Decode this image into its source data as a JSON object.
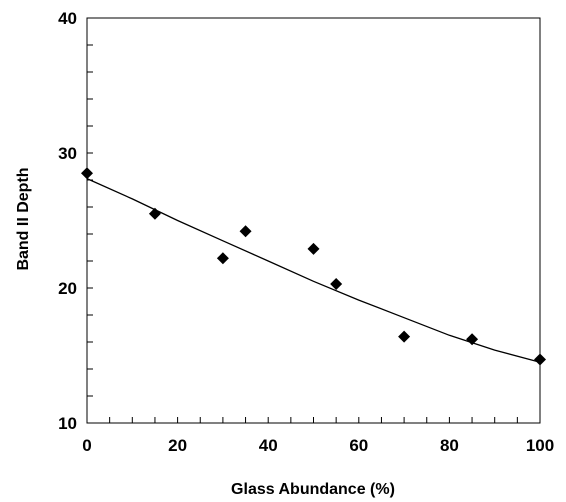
{
  "chart_data": {
    "type": "scatter",
    "xlabel": "Glass Abundance (%)",
    "ylabel": "Band II Depth",
    "xlim": [
      0,
      100
    ],
    "ylim": [
      10,
      40
    ],
    "x_ticks": [
      "0",
      "20",
      "40",
      "60",
      "80",
      "100"
    ],
    "y_ticks": [
      "10",
      "20",
      "30",
      "40"
    ],
    "grid": false,
    "marker": "diamond",
    "marker_color": "#000000",
    "series": [
      {
        "points": [
          {
            "x": 0,
            "y": 28.5
          },
          {
            "x": 15,
            "y": 25.5
          },
          {
            "x": 30,
            "y": 22.2
          },
          {
            "x": 35,
            "y": 24.2
          },
          {
            "x": 50,
            "y": 22.9
          },
          {
            "x": 55,
            "y": 20.3
          },
          {
            "x": 70,
            "y": 16.4
          },
          {
            "x": 85,
            "y": 16.2
          },
          {
            "x": 100,
            "y": 14.7
          }
        ]
      }
    ],
    "trendline": {
      "type": "polynomial",
      "points": [
        {
          "x": 0,
          "y": 28.1
        },
        {
          "x": 10,
          "y": 26.6
        },
        {
          "x": 20,
          "y": 25.0
        },
        {
          "x": 30,
          "y": 23.5
        },
        {
          "x": 40,
          "y": 22.0
        },
        {
          "x": 50,
          "y": 20.5
        },
        {
          "x": 60,
          "y": 19.1
        },
        {
          "x": 70,
          "y": 17.8
        },
        {
          "x": 80,
          "y": 16.5
        },
        {
          "x": 90,
          "y": 15.4
        },
        {
          "x": 100,
          "y": 14.5
        }
      ]
    }
  }
}
